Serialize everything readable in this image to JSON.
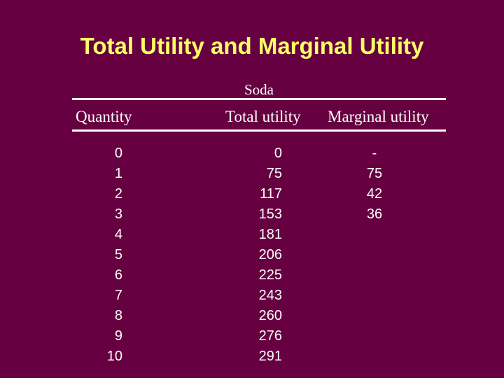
{
  "slide": {
    "title": "Total Utility and Marginal Utility"
  },
  "table": {
    "group_label": "Soda",
    "headers": {
      "quantity": "Quantity",
      "total_utility": "Total utility",
      "marginal_utility": "Marginal utility"
    },
    "quantity": [
      "0",
      "1",
      "2",
      "3",
      "4",
      "5",
      "6",
      "7",
      "8",
      "9",
      "10"
    ],
    "total_utility": [
      "0",
      "75",
      "117",
      "153",
      "181",
      "206",
      "225",
      "243",
      "260",
      "276",
      "291"
    ],
    "marginal_utility": [
      "-",
      "75",
      "42",
      "36"
    ]
  },
  "colors": {
    "background": "#660040",
    "title": "#ffff66",
    "text": "#ffffff"
  }
}
